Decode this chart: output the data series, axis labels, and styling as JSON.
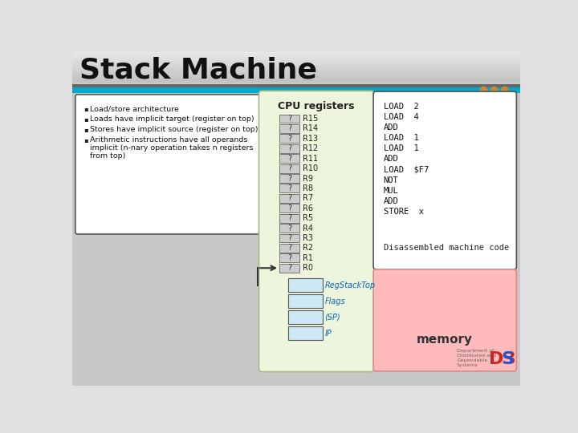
{
  "title": "Stack Machine",
  "title_fontsize": 26,
  "title_fontweight": "bold",
  "bg_top_color": "#e0e0e0",
  "bg_bottom_color": "#c8c8c8",
  "header_bar_color": "#00aacc",
  "header_bar_dark": "#555555",
  "dots_colors": [
    "#cc8833",
    "#cc8833",
    "#cc8833"
  ],
  "bullet_text_lines": [
    [
      "Load/store architecture"
    ],
    [
      "Loads have implicit target (register on top)"
    ],
    [
      "Stores have implicit source (register on top)"
    ],
    [
      "Arithmetic instructions have all operands",
      "implicit (n-nary operation takes n registers",
      "from top)"
    ]
  ],
  "bullet_box_color": "#ffffff",
  "bullet_box_border": "#555555",
  "cpu_box_color": "#eef5dd",
  "cpu_box_border": "#aabb88",
  "cpu_title": "CPU registers",
  "cpu_registers": [
    "R15",
    "R14",
    "R13",
    "R12",
    "R11",
    "R10",
    "R9",
    "R8",
    "R7",
    "R6",
    "R5",
    "R4",
    "R3",
    "R2",
    "R1",
    "R0"
  ],
  "reg_cell_color": "#cccccc",
  "reg_cell_border": "#666666",
  "special_regs": [
    "RegStackTop",
    "Flags",
    "(SP)",
    "IP"
  ],
  "special_reg_color": "#cce8f4",
  "special_reg_border": "#555555",
  "special_reg_text_color": "#0066bb",
  "arrow_color": "#333333",
  "code_box_color": "#ffffff",
  "code_box_border": "#555555",
  "code_lines": [
    "LOAD  2",
    "LOAD  4",
    "ADD",
    "LOAD  1",
    "LOAD  1",
    "ADD",
    "LOAD  $F7",
    "NOT",
    "MUL",
    "ADD",
    "STORE  x"
  ],
  "disassem_text": "Disassembled machine code",
  "memory_box_color": "#ffbbbb",
  "memory_box_border": "#dd8888",
  "memory_text": "memory",
  "memory_fontsize": 11,
  "memory_fontweight": "bold",
  "dept_text": "Department of\nDistributed and\nDependable\nSystems",
  "d3s_color": "#cc2222",
  "d3s_blue": "#2255cc"
}
